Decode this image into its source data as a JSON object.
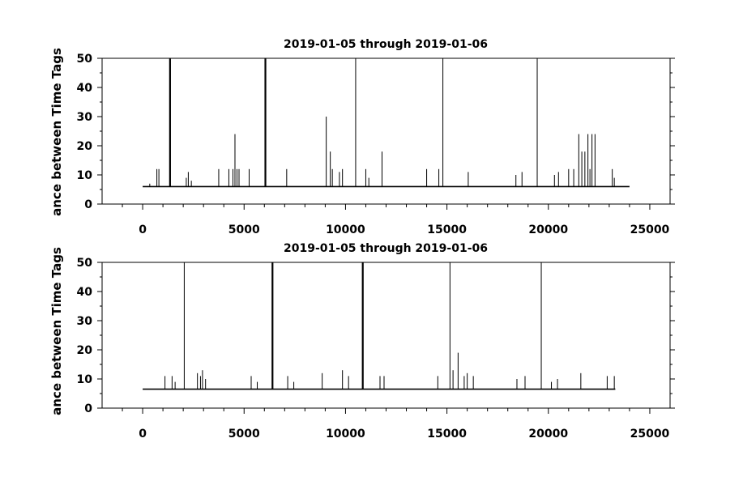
{
  "chart_data": [
    {
      "type": "line",
      "title": "2019-01-05 through 2019-01-06",
      "ylabel": "ance between Time Tags",
      "xlabel": "",
      "xlim": [
        -2000,
        26000
      ],
      "ylim": [
        0,
        50
      ],
      "x_ticks": [
        0,
        5000,
        10000,
        15000,
        20000,
        25000
      ],
      "y_ticks": [
        0,
        10,
        20,
        30,
        40,
        50
      ],
      "x_minor_ticks": [
        -1000,
        1000,
        2000,
        3000,
        4000,
        6000,
        7000,
        8000,
        9000,
        11000,
        12000,
        13000,
        14000,
        16000,
        17000,
        18000,
        19000,
        21000,
        22000,
        23000,
        24000
      ],
      "y_minor_ticks": [
        5,
        15,
        25,
        35,
        45
      ],
      "grid": false,
      "series": [
        {
          "baseline": 6,
          "x_range": [
            0,
            24000
          ],
          "spikes": [
            {
              "x": 1350,
              "y": 50,
              "bold": true
            },
            {
              "x": 6050,
              "y": 50,
              "bold": true
            },
            {
              "x": 10500,
              "y": 50
            },
            {
              "x": 14800,
              "y": 50
            },
            {
              "x": 19450,
              "y": 50
            },
            {
              "x": 350,
              "y": 7
            },
            {
              "x": 700,
              "y": 12
            },
            {
              "x": 800,
              "y": 12
            },
            {
              "x": 2150,
              "y": 9
            },
            {
              "x": 2250,
              "y": 11
            },
            {
              "x": 2400,
              "y": 8
            },
            {
              "x": 3750,
              "y": 12
            },
            {
              "x": 4250,
              "y": 12
            },
            {
              "x": 4450,
              "y": 12
            },
            {
              "x": 4550,
              "y": 24
            },
            {
              "x": 4650,
              "y": 12
            },
            {
              "x": 4750,
              "y": 12
            },
            {
              "x": 5250,
              "y": 12
            },
            {
              "x": 7100,
              "y": 12
            },
            {
              "x": 9050,
              "y": 30
            },
            {
              "x": 9250,
              "y": 18
            },
            {
              "x": 9350,
              "y": 12
            },
            {
              "x": 9700,
              "y": 11
            },
            {
              "x": 9850,
              "y": 12
            },
            {
              "x": 11000,
              "y": 12
            },
            {
              "x": 11150,
              "y": 9
            },
            {
              "x": 11800,
              "y": 18
            },
            {
              "x": 14000,
              "y": 12
            },
            {
              "x": 14600,
              "y": 12
            },
            {
              "x": 16050,
              "y": 11
            },
            {
              "x": 18400,
              "y": 10
            },
            {
              "x": 18700,
              "y": 11
            },
            {
              "x": 20300,
              "y": 10
            },
            {
              "x": 20500,
              "y": 11
            },
            {
              "x": 21000,
              "y": 12
            },
            {
              "x": 21250,
              "y": 12
            },
            {
              "x": 21500,
              "y": 24
            },
            {
              "x": 21650,
              "y": 18
            },
            {
              "x": 21800,
              "y": 18
            },
            {
              "x": 21950,
              "y": 24
            },
            {
              "x": 22050,
              "y": 12
            },
            {
              "x": 22150,
              "y": 24
            },
            {
              "x": 22300,
              "y": 24
            },
            {
              "x": 23150,
              "y": 12
            },
            {
              "x": 23250,
              "y": 9
            }
          ]
        }
      ]
    },
    {
      "type": "line",
      "title": "2019-01-05 through 2019-01-06",
      "ylabel": "ance between Time Tags",
      "xlabel": "",
      "xlim": [
        -2000,
        26000
      ],
      "ylim": [
        0,
        50
      ],
      "x_ticks": [
        0,
        5000,
        10000,
        15000,
        20000,
        25000
      ],
      "y_ticks": [
        0,
        10,
        20,
        30,
        40,
        50
      ],
      "x_minor_ticks": [
        -1000,
        1000,
        2000,
        3000,
        4000,
        6000,
        7000,
        8000,
        9000,
        11000,
        12000,
        13000,
        14000,
        16000,
        17000,
        18000,
        19000,
        21000,
        22000,
        23000,
        24000
      ],
      "y_minor_ticks": [
        5,
        15,
        25,
        35,
        45
      ],
      "grid": false,
      "series": [
        {
          "baseline": 6.5,
          "x_range": [
            0,
            23300
          ],
          "spikes": [
            {
              "x": 2050,
              "y": 50
            },
            {
              "x": 6400,
              "y": 50,
              "bold": true
            },
            {
              "x": 10850,
              "y": 50,
              "bold": true
            },
            {
              "x": 15150,
              "y": 50
            },
            {
              "x": 19650,
              "y": 50
            },
            {
              "x": 1100,
              "y": 11
            },
            {
              "x": 1450,
              "y": 11
            },
            {
              "x": 1600,
              "y": 9
            },
            {
              "x": 2700,
              "y": 12
            },
            {
              "x": 2850,
              "y": 11
            },
            {
              "x": 2950,
              "y": 13
            },
            {
              "x": 3100,
              "y": 10
            },
            {
              "x": 5350,
              "y": 11
            },
            {
              "x": 5650,
              "y": 9
            },
            {
              "x": 7150,
              "y": 11
            },
            {
              "x": 7450,
              "y": 9
            },
            {
              "x": 8850,
              "y": 12
            },
            {
              "x": 9850,
              "y": 13
            },
            {
              "x": 10150,
              "y": 11
            },
            {
              "x": 11700,
              "y": 11
            },
            {
              "x": 11900,
              "y": 11
            },
            {
              "x": 14550,
              "y": 11
            },
            {
              "x": 15300,
              "y": 13
            },
            {
              "x": 15550,
              "y": 19
            },
            {
              "x": 15850,
              "y": 11
            },
            {
              "x": 16000,
              "y": 12
            },
            {
              "x": 16300,
              "y": 11
            },
            {
              "x": 18450,
              "y": 10
            },
            {
              "x": 18850,
              "y": 11
            },
            {
              "x": 20150,
              "y": 9
            },
            {
              "x": 20450,
              "y": 10
            },
            {
              "x": 21600,
              "y": 12
            },
            {
              "x": 22900,
              "y": 11
            },
            {
              "x": 23250,
              "y": 11
            }
          ]
        }
      ]
    }
  ]
}
